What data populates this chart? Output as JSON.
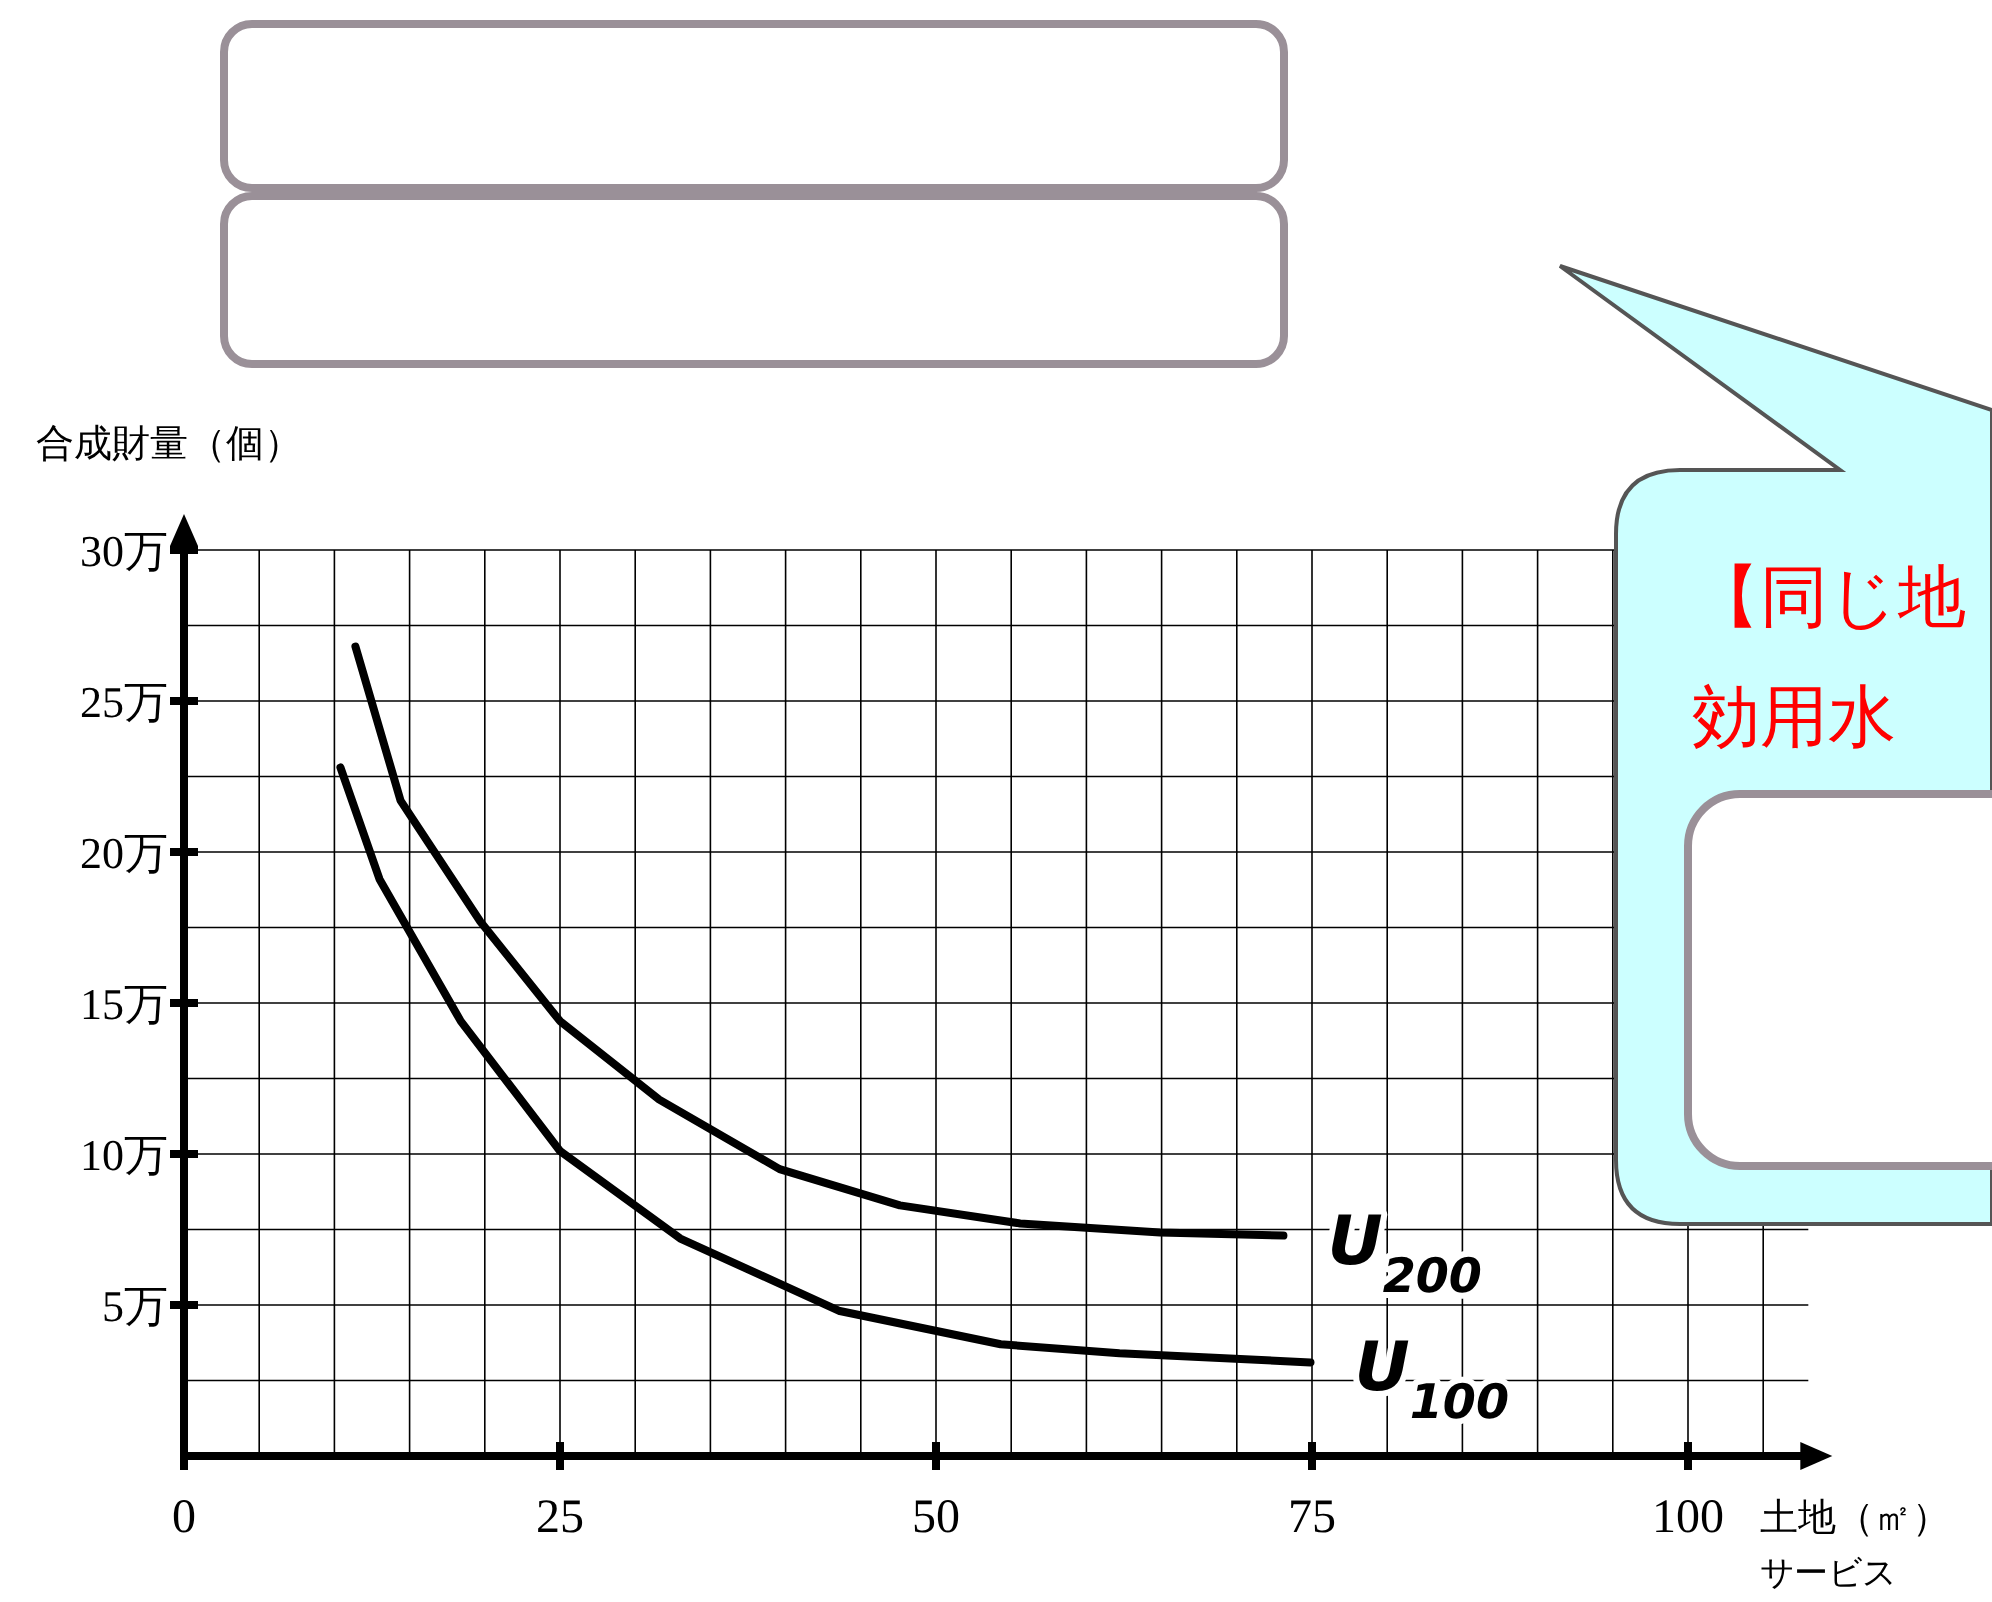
{
  "chart_data": {
    "type": "line",
    "ylabel": "合成財量（個）",
    "xlabel": "土地（㎡）",
    "annotations": [
      "サービス",
      "【同じ地",
      "効用水"
    ],
    "xlim": [
      0,
      108
    ],
    "ylim": [
      0,
      30
    ],
    "xticks": [
      0,
      {
        "value": 5,
        "label": null
      },
      {
        "value": 10,
        "label": null
      },
      {
        "value": 15,
        "label": null
      },
      {
        "value": 20,
        "label": null
      },
      25,
      {
        "value": 30,
        "label": null
      },
      {
        "value": 35,
        "label": null
      },
      {
        "value": 40,
        "label": null
      },
      {
        "value": 45,
        "label": null
      },
      50,
      {
        "value": 55,
        "label": null
      },
      {
        "value": 60,
        "label": null
      },
      {
        "value": 65,
        "label": null
      },
      {
        "value": 70,
        "label": null
      },
      75,
      {
        "value": 80,
        "label": null
      },
      {
        "value": 85,
        "label": null
      },
      {
        "value": 90,
        "label": null
      },
      {
        "value": 95,
        "label": null
      },
      100,
      {
        "value": 105,
        "label": null
      }
    ],
    "yticks": [
      {
        "value": 0,
        "label": null
      },
      {
        "value": 2.5,
        "label": null
      },
      {
        "value": 5,
        "label": "5万"
      },
      {
        "value": 7.5,
        "label": null
      },
      {
        "value": 10,
        "label": "10万"
      },
      {
        "value": 12.5,
        "label": null
      },
      {
        "value": 15,
        "label": "15万"
      },
      {
        "value": 17.5,
        "label": null
      },
      {
        "value": 20,
        "label": "20万"
      },
      {
        "value": 22.5,
        "label": null
      },
      {
        "value": 25,
        "label": "25万"
      },
      {
        "value": 27.5,
        "label": null
      },
      {
        "value": 30,
        "label": "30万"
      }
    ],
    "grid": true,
    "legend": false,
    "marker": "none",
    "line_style": "solid",
    "series": [
      {
        "name": "U$_{200}$",
        "color": "#000000",
        "x": [
          11.4,
          14.4,
          19.7,
          25,
          31.6,
          39.6,
          47.6,
          55.6,
          64.9,
          73.1
        ],
        "values": [
          26.8,
          21.7,
          17.7,
          14.4,
          11.8,
          9.5,
          8.3,
          7.7,
          7.4,
          7.3
        ]
      },
      {
        "name": "U$_{100}$",
        "color": "#000000",
        "x": [
          10.4,
          13,
          18.4,
          25,
          33,
          43.6,
          54.3,
          62.2,
          74.9
        ],
        "values": [
          22.8,
          19.1,
          14.4,
          10.1,
          7.2,
          4.8,
          3.7,
          3.4,
          3.1
        ]
      }
    ]
  }
}
